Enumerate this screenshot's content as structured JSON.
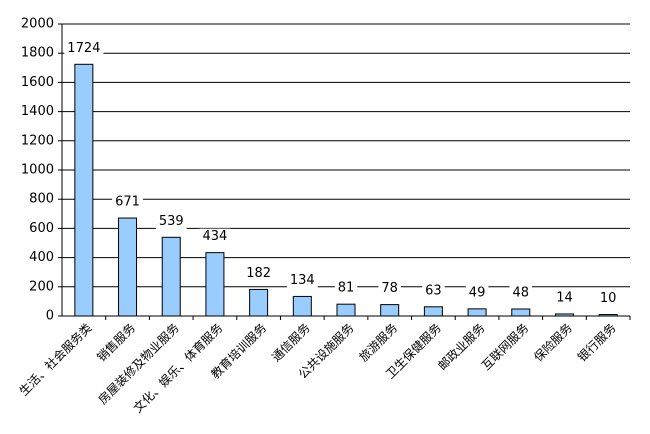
{
  "chart_data": {
    "type": "bar",
    "categories": [
      "生活、社会服务类",
      "销售服务",
      "房屋装修及物业服务",
      "文化、娱乐、体育服务",
      "教育培训服务",
      "通信服务",
      "公共设施服务",
      "旅游服务",
      "卫生保健服务",
      "邮政业服务",
      "互联网服务",
      "保险服务",
      "银行服务"
    ],
    "values": [
      1724,
      671,
      539,
      434,
      182,
      134,
      81,
      78,
      63,
      49,
      48,
      14,
      10
    ],
    "color": "#99ccff",
    "ylim": [
      0,
      2000
    ],
    "yticks": [
      0,
      200,
      400,
      600,
      800,
      1000,
      1200,
      1400,
      1600,
      1800,
      2000
    ],
    "grid": true
  }
}
